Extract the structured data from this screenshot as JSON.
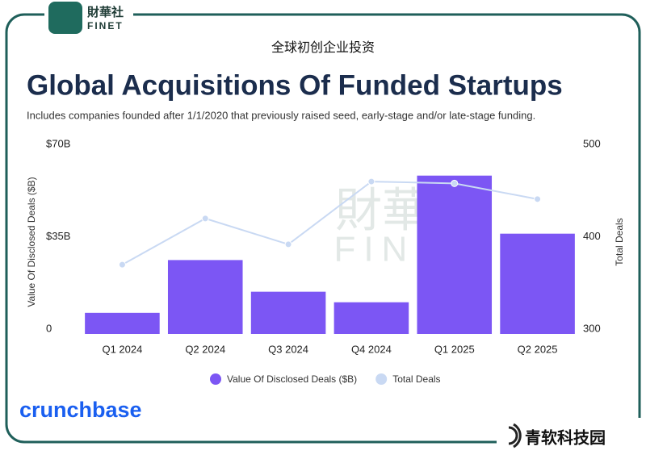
{
  "header": {
    "brand_cn": "財華社",
    "brand_en": "FINET",
    "caption": "全球初创企业投资"
  },
  "chart_data": {
    "type": "bar-line",
    "title": "Global Acquisitions Of Funded Startups",
    "subtitle": "Includes companies founded after 1/1/2020 that previously raised seed, early-stage and/or late-stage funding.",
    "y_label": "Value Of Disclosed Deals ($B)",
    "y2_label": "Total Deals",
    "categories": [
      "Q1 2024",
      "Q2 2024",
      "Q3 2024",
      "Q4 2024",
      "Q1 2025",
      "Q2 2025"
    ],
    "series": [
      {
        "name": "Value Of Disclosed Deals ($B)",
        "type": "bar",
        "color": "#7c56f4",
        "values": [
          8,
          28,
          16,
          12,
          60,
          38
        ]
      },
      {
        "name": "Total Deals",
        "type": "line",
        "axis": "y2",
        "color": "#c9d9f3",
        "values": [
          375,
          425,
          397,
          465,
          463,
          446
        ]
      }
    ],
    "ylim": [
      0,
      70
    ],
    "yticks": [
      0,
      {
        "value": 35,
        "label": "$35B"
      },
      {
        "value": 70,
        "label": "$70B"
      }
    ],
    "y2lim": [
      300,
      500
    ],
    "y2ticks": [
      300,
      400,
      500
    ],
    "grid": false,
    "legend": "bottom"
  },
  "footer": {
    "source": "crunchbase",
    "publisher": "青软科技园"
  }
}
